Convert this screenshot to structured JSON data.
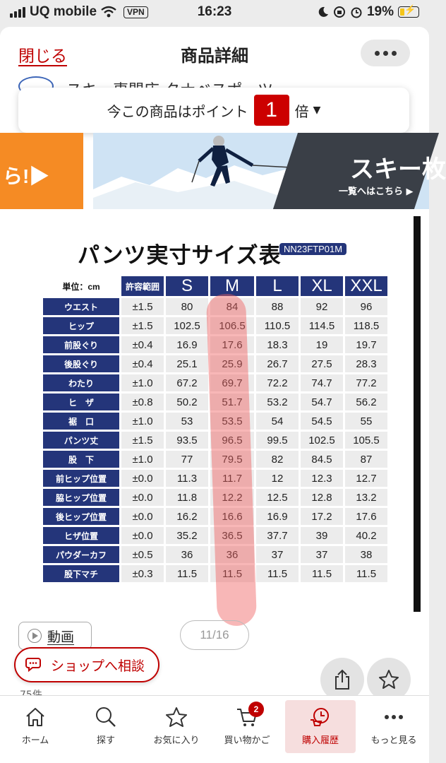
{
  "status_bar": {
    "carrier": "UQ mobile",
    "vpn": "VPN",
    "time": "16:23",
    "battery": "19%"
  },
  "header": {
    "close_label": "閉じる",
    "title": "商品詳細",
    "more_icon": "more-icon"
  },
  "shop": {
    "name": "スキー専門店 タナベスポーツ"
  },
  "points": {
    "prefix": "今この商品はポイント",
    "multiplier": "1",
    "suffix": "倍"
  },
  "banners": {
    "left_text": "ら!▶",
    "ski_title": "スキー枚",
    "ski_sub": "一覧へはこちら ▶"
  },
  "size_chart": {
    "title": "パンツ実寸サイズ表",
    "model_code": "NN23FTP01M",
    "unit_label": "単位：cm",
    "tolerance_header": "許容範囲",
    "sizes": [
      "S",
      "M",
      "L",
      "XL",
      "XXL"
    ],
    "rows": [
      {
        "label": "ウエスト",
        "tol": "±1.5",
        "values": [
          "80",
          "84",
          "88",
          "92",
          "96"
        ]
      },
      {
        "label": "ヒップ",
        "tol": "±1.5",
        "values": [
          "102.5",
          "106.5",
          "110.5",
          "114.5",
          "118.5"
        ]
      },
      {
        "label": "前股ぐり",
        "tol": "±0.4",
        "values": [
          "16.9",
          "17.6",
          "18.3",
          "19",
          "19.7"
        ]
      },
      {
        "label": "後股ぐり",
        "tol": "±0.4",
        "values": [
          "25.1",
          "25.9",
          "26.7",
          "27.5",
          "28.3"
        ]
      },
      {
        "label": "わたり",
        "tol": "±1.0",
        "values": [
          "67.2",
          "69.7",
          "72.2",
          "74.7",
          "77.2"
        ]
      },
      {
        "label": "ヒ　ザ",
        "tol": "±0.8",
        "values": [
          "50.2",
          "51.7",
          "53.2",
          "54.7",
          "56.2"
        ]
      },
      {
        "label": "裾　口",
        "tol": "±1.0",
        "values": [
          "53",
          "53.5",
          "54",
          "54.5",
          "55"
        ]
      },
      {
        "label": "パンツ丈",
        "tol": "±1.5",
        "values": [
          "93.5",
          "96.5",
          "99.5",
          "102.5",
          "105.5"
        ]
      },
      {
        "label": "股　下",
        "tol": "±1.0",
        "values": [
          "77",
          "79.5",
          "82",
          "84.5",
          "87"
        ]
      },
      {
        "label": "前ヒップ位置",
        "tol": "±0.0",
        "values": [
          "11.3",
          "11.7",
          "12",
          "12.3",
          "12.7"
        ]
      },
      {
        "label": "脇ヒップ位置",
        "tol": "±0.0",
        "values": [
          "11.8",
          "12.2",
          "12.5",
          "12.8",
          "13.2"
        ]
      },
      {
        "label": "後ヒップ位置",
        "tol": "±0.0",
        "values": [
          "16.2",
          "16.6",
          "16.9",
          "17.2",
          "17.6"
        ]
      },
      {
        "label": "ヒザ位置",
        "tol": "±0.0",
        "values": [
          "35.2",
          "36.5",
          "37.7",
          "39",
          "40.2"
        ]
      },
      {
        "label": "パウダーカフ",
        "tol": "±0.5",
        "values": [
          "36",
          "36",
          "37",
          "37",
          "38"
        ]
      },
      {
        "label": "股下マチ",
        "tol": "±0.3",
        "values": [
          "11.5",
          "11.5",
          "11.5",
          "11.5",
          "11.5"
        ]
      }
    ]
  },
  "media": {
    "video_label": "動画",
    "counter": "11/16"
  },
  "actions": {
    "consult_label": "ショップへ相談",
    "clipped_text": "75件"
  },
  "tabbar": {
    "tabs": [
      {
        "label": "ホーム",
        "icon": "home-icon"
      },
      {
        "label": "探す",
        "icon": "search-icon"
      },
      {
        "label": "お気に入り",
        "icon": "star-icon"
      },
      {
        "label": "買い物かご",
        "icon": "cart-icon",
        "badge": "2"
      },
      {
        "label": "購入履歴",
        "icon": "history-icon"
      },
      {
        "label": "もっと見る",
        "icon": "more-icon"
      }
    ]
  },
  "colors": {
    "brand_red": "#bf0000",
    "table_navy": "#24357a",
    "banner_orange": "#f58b24",
    "highlight": "#f06060"
  }
}
